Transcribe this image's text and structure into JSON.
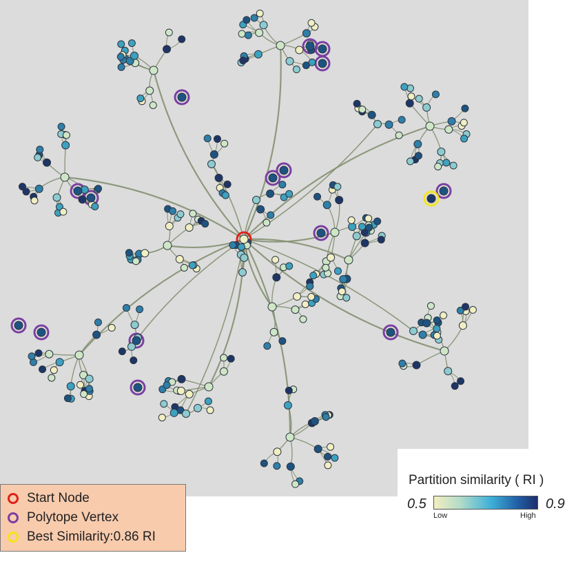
{
  "legend": {
    "start_label": "Start Node",
    "vertex_label": "Polytope Vertex",
    "best_label": "Best Similarity:0.86 RI",
    "start_color": "#e0201b",
    "vertex_color": "#7a3fa0",
    "best_color": "#f3e51b"
  },
  "colorbar": {
    "title": "Partition similarity ( RI )",
    "min": "0.5",
    "max": "0.9",
    "low_label": "Low",
    "high_label": "High",
    "range": [
      0.5,
      0.9
    ],
    "colors": [
      "#f3efbf",
      "#b3dcc8",
      "#3fb0d8",
      "#2161a8",
      "#1d2f6b"
    ]
  },
  "graph": {
    "edge_color": "#7f8c6c",
    "node_outline": "#2b3440"
  }
}
